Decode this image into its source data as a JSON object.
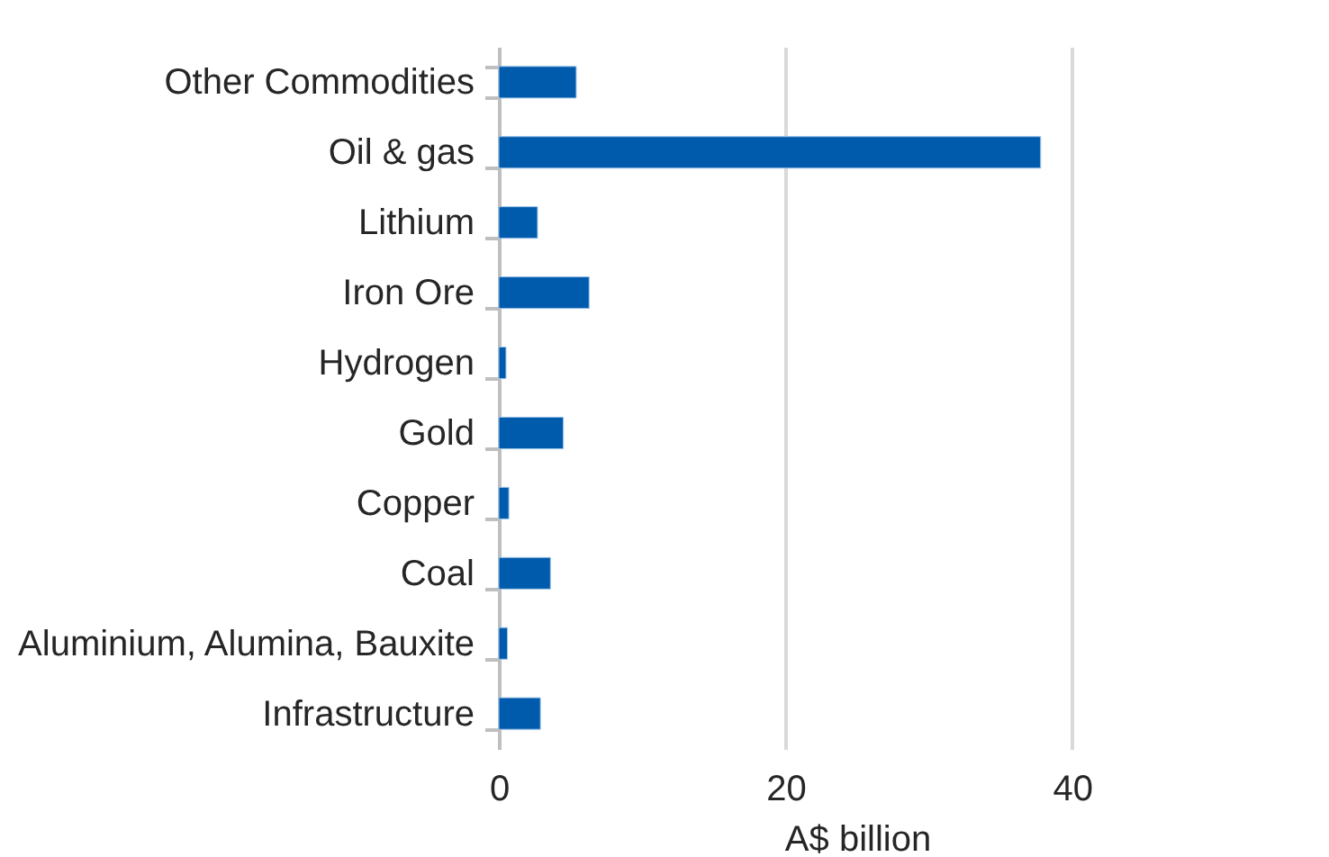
{
  "chart_data": {
    "type": "bar",
    "orientation": "horizontal",
    "xlabel": "A$ billion",
    "categories": [
      "Other Commodities",
      "Oil & gas",
      "Lithium",
      "Iron Ore",
      "Hydrogen",
      "Gold",
      "Copper",
      "Coal",
      "Aluminium, Alumina, Bauxite",
      "Infrastructure"
    ],
    "values": [
      5.4,
      37.8,
      2.7,
      6.3,
      0.5,
      4.5,
      0.7,
      3.6,
      0.6,
      2.9
    ],
    "color": "#005bac",
    "xlim": [
      0,
      50
    ],
    "xticks": [
      0,
      20,
      40
    ],
    "grid": "x"
  }
}
